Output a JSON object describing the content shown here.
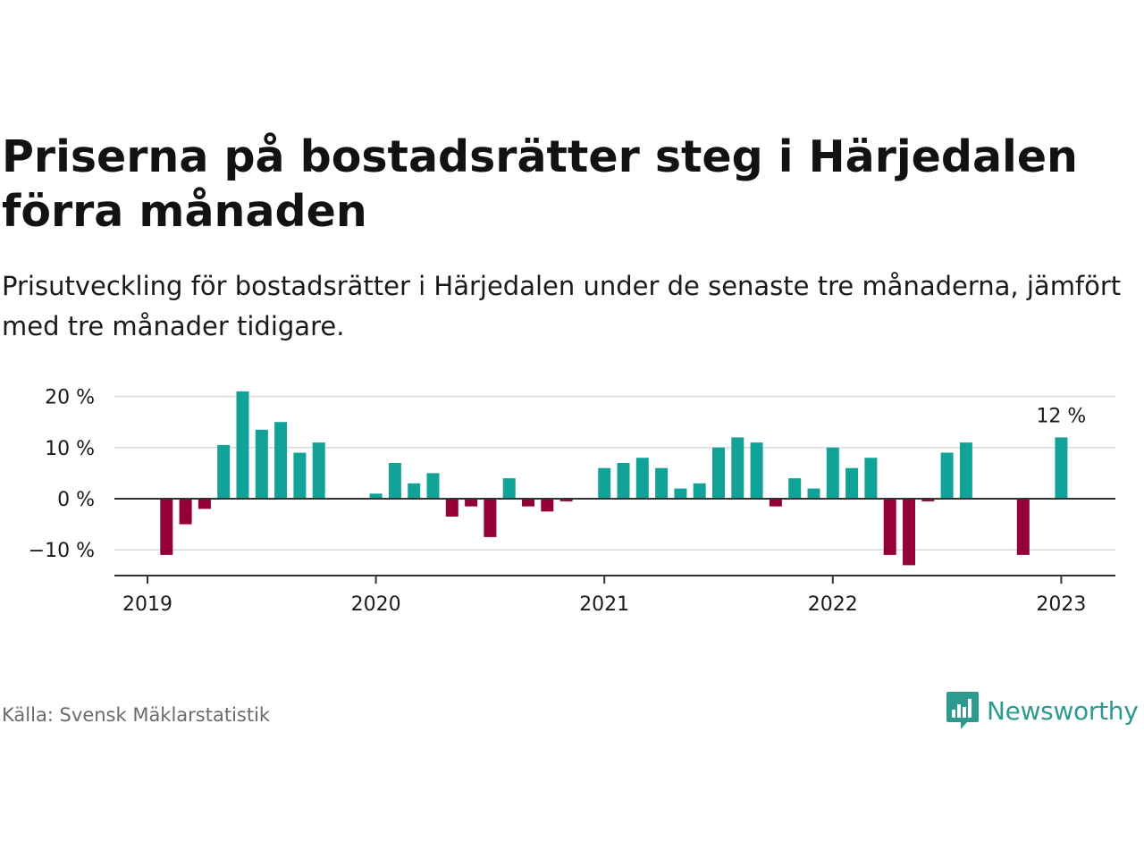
{
  "title": "Priserna på bostadsrätter steg i Härjedalen förra månaden",
  "subtitle": "Prisutveckling för bostadsrätter i Härjedalen under de senaste tre månaderna, jämfört med tre månader tidigare.",
  "source": "Källa: Svensk Mäklarstatistik",
  "brand": {
    "name": "Newsworthy",
    "icon": "newsworthy-logo-icon",
    "color": "#2c9a8f"
  },
  "colors": {
    "positive": "#12a398",
    "negative": "#960039",
    "grid": "#d9d9d9",
    "zero_line": "#333333"
  },
  "chart_data": {
    "type": "bar",
    "x_start": "2019-01",
    "x_labels": [
      "2019",
      "2020",
      "2021",
      "2022",
      "2023"
    ],
    "y_ticks": [
      20,
      10,
      0,
      -10
    ],
    "y_tick_labels": [
      "20 %",
      "10 %",
      "0 %",
      "−10 %"
    ],
    "ylim": [
      -15,
      22
    ],
    "grid": true,
    "annotation": {
      "text": "12 %",
      "month": "2023-01"
    },
    "values": [
      null,
      -11,
      -5,
      -2,
      10.5,
      21,
      13.5,
      15,
      9,
      11,
      null,
      null,
      1,
      7,
      3,
      5,
      -3.5,
      -1.5,
      -7.5,
      4,
      -1.5,
      -2.5,
      -0.5,
      null,
      6,
      7,
      8,
      6,
      2,
      3,
      10,
      12,
      11,
      -1.5,
      4,
      2,
      10,
      6,
      8,
      -11,
      -13,
      -0.5,
      9,
      11,
      null,
      null,
      -11,
      null,
      12
    ]
  }
}
